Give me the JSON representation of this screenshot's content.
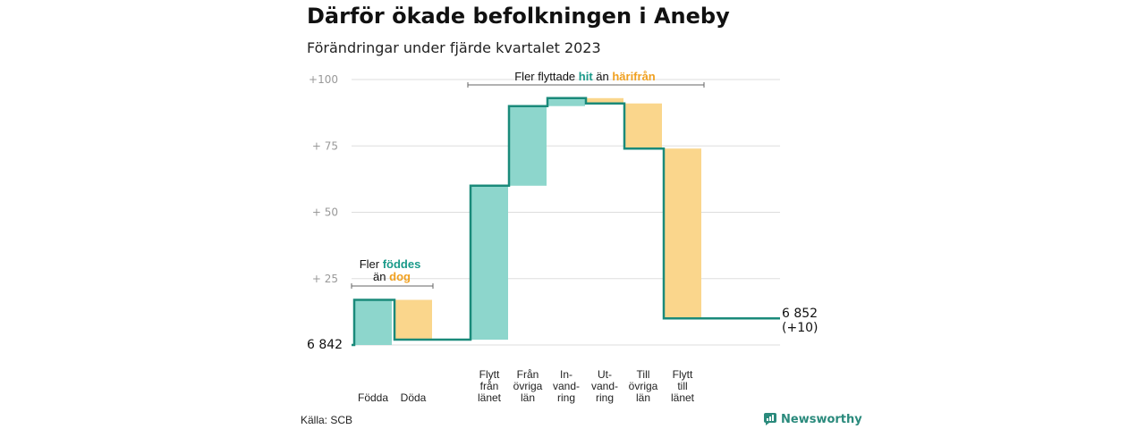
{
  "title": "Därför ökade befolkningen i Aneby",
  "subtitle": "Förändringar under fjärde kvartalet 2023",
  "source": "Källa: SCB",
  "brand": "Newsworthy",
  "colors": {
    "increase": "#8dd6cc",
    "decrease": "#fad68c",
    "line": "#1a8a7a",
    "teal_text": "#1a9a8a",
    "orange_text": "#f0a020",
    "grid": "#dddddd",
    "tick": "#999999"
  },
  "chart_data": {
    "type": "waterfall",
    "start_label": "6  842",
    "end_label": [
      "6 852",
      "(+10)"
    ],
    "y_ticks": [
      "+100",
      "+  75",
      "+  50",
      "+  25"
    ],
    "categories": [
      {
        "lines": [
          "Födda"
        ],
        "start": 0,
        "end": 17
      },
      {
        "lines": [
          "Döda"
        ],
        "start": 17,
        "end": 2
      },
      {
        "lines": [
          "Flytt",
          "från",
          "länet"
        ],
        "start": 2,
        "end": 60
      },
      {
        "lines": [
          "Från",
          "övriga",
          "län"
        ],
        "start": 60,
        "end": 90
      },
      {
        "lines": [
          "In-",
          "vand-",
          "ring"
        ],
        "start": 90,
        "end": 93
      },
      {
        "lines": [
          "Ut-",
          "vand-",
          "ring"
        ],
        "start": 93,
        "end": 91
      },
      {
        "lines": [
          "Till",
          "övriga",
          "län"
        ],
        "start": 91,
        "end": 74
      },
      {
        "lines": [
          "Flytt",
          "till",
          "länet"
        ],
        "start": 74,
        "end": 10
      }
    ],
    "ylim": [
      0,
      100
    ]
  },
  "annotations": {
    "births": {
      "line1_pre": "Fler ",
      "line1_hl": "föddes",
      "line2_pre": "än ",
      "line2_hl": "dog"
    },
    "moves": {
      "pre": "Fler flyttade ",
      "hl1": "hit",
      "mid": " än ",
      "hl2": "härifrån"
    }
  }
}
